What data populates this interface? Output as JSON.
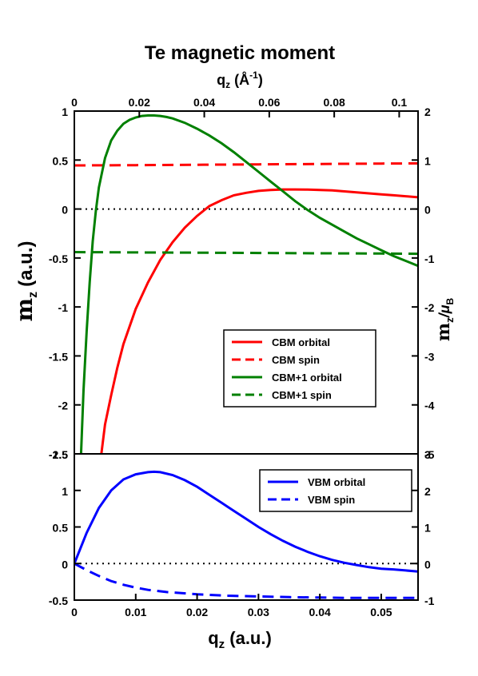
{
  "chart_data": {
    "type": "line",
    "title": "Te magnetic moment",
    "top_xlabel": {
      "main": "q",
      "sub": "z",
      "rest": " (Å",
      "sup": "-1",
      "close": ")"
    },
    "xlabel": {
      "main": "q",
      "sub": "z",
      "rest": " (a.u.)"
    },
    "ylabel_left": "m",
    "ylabel_left_sub": "z",
    "ylabel_left_unit": "(a.u.)",
    "ylabel_right": "m",
    "ylabel_right_sub": "z",
    "ylabel_right_unit": "/μ",
    "ylabel_right_unit_sub": "B",
    "xlim": [
      0,
      0.056
    ],
    "top_xlim": [
      0,
      0.1058
    ],
    "top_xticks": [
      "0",
      "0.02",
      "0.04",
      "0.06",
      "0.08",
      "0.1"
    ],
    "top_xtick_values": [
      0,
      0.02,
      0.04,
      0.06,
      0.08,
      0.1
    ],
    "bottom_xticks": [
      "0",
      "0.01",
      "0.02",
      "0.03",
      "0.04",
      "0.05"
    ],
    "bottom_xtick_values": [
      0,
      0.01,
      0.02,
      0.03,
      0.04,
      0.05
    ],
    "grid": false,
    "panels": [
      {
        "id": "upper",
        "ylim": [
          -2.5,
          1
        ],
        "yticks_left": [
          "1",
          "0.5",
          "0",
          "-0.5",
          "-1",
          "-1.5",
          "-2",
          "-2.5"
        ],
        "ytick_values": [
          1,
          0.5,
          0,
          -0.5,
          -1,
          -1.5,
          -2,
          -2.5
        ],
        "yticks_right": [
          "2",
          "1",
          "0",
          "-1",
          "-2",
          "-3",
          "-4",
          "-5"
        ],
        "legend_position": "lower-right",
        "series": [
          {
            "name": "CBM orbital",
            "color": "#ff0000",
            "dash": "solid",
            "x": [
              0.0044,
              0.005,
              0.006,
              0.007,
              0.008,
              0.01,
              0.012,
              0.014,
              0.016,
              0.018,
              0.02,
              0.022,
              0.024,
              0.026,
              0.028,
              0.03,
              0.032,
              0.034,
              0.036,
              0.038,
              0.04,
              0.042,
              0.044,
              0.046,
              0.048,
              0.05,
              0.052,
              0.054,
              0.056
            ],
            "y": [
              -2.5,
              -2.2,
              -1.9,
              -1.62,
              -1.38,
              -1.02,
              -0.75,
              -0.52,
              -0.34,
              -0.19,
              -0.07,
              0.03,
              0.09,
              0.14,
              0.165,
              0.185,
              0.195,
              0.2,
              0.2,
              0.198,
              0.195,
              0.19,
              0.18,
              0.17,
              0.16,
              0.15,
              0.14,
              0.13,
              0.12
            ]
          },
          {
            "name": "CBM spin",
            "color": "#ff0000",
            "dash": "dashed",
            "x": [
              0,
              0.01,
              0.02,
              0.03,
              0.04,
              0.05,
              0.056
            ],
            "y": [
              0.445,
              0.448,
              0.452,
              0.456,
              0.46,
              0.464,
              0.466
            ]
          },
          {
            "name": "CBM+1 orbital",
            "color": "#008000",
            "dash": "solid",
            "x": [
              0.0011,
              0.0015,
              0.002,
              0.0025,
              0.003,
              0.0035,
              0.004,
              0.005,
              0.006,
              0.007,
              0.008,
              0.009,
              0.01,
              0.011,
              0.012,
              0.013,
              0.014,
              0.015,
              0.016,
              0.018,
              0.02,
              0.022,
              0.024,
              0.026,
              0.028,
              0.03,
              0.032,
              0.034,
              0.036,
              0.038,
              0.04,
              0.042,
              0.044,
              0.046,
              0.048,
              0.05,
              0.052,
              0.054,
              0.056
            ],
            "y": [
              -2.5,
              -1.85,
              -1.25,
              -0.75,
              -0.33,
              -0.02,
              0.22,
              0.52,
              0.7,
              0.8,
              0.87,
              0.91,
              0.935,
              0.95,
              0.955,
              0.955,
              0.95,
              0.94,
              0.925,
              0.88,
              0.82,
              0.75,
              0.67,
              0.58,
              0.48,
              0.38,
              0.28,
              0.18,
              0.08,
              -0.01,
              -0.09,
              -0.16,
              -0.23,
              -0.3,
              -0.36,
              -0.42,
              -0.48,
              -0.53,
              -0.58
            ]
          },
          {
            "name": "CBM+1 spin",
            "color": "#008000",
            "dash": "dashed",
            "x": [
              0,
              0.01,
              0.02,
              0.03,
              0.04,
              0.05,
              0.056
            ],
            "y": [
              -0.44,
              -0.443,
              -0.446,
              -0.449,
              -0.452,
              -0.455,
              -0.457
            ]
          }
        ]
      },
      {
        "id": "lower",
        "ylim": [
          -0.5,
          1.5
        ],
        "yticks_left": [
          "1",
          "0.5",
          "0",
          "-0.5"
        ],
        "ytick_values": [
          1,
          0.5,
          0,
          -0.5
        ],
        "top_label_left": "1.5",
        "top_label_right": "3",
        "yticks_right": [
          "2",
          "1",
          "0",
          "-1"
        ],
        "legend_position": "top-right",
        "series": [
          {
            "name": "VBM orbital",
            "color": "#0000ff",
            "dash": "solid",
            "x": [
              0,
              0.002,
              0.004,
              0.006,
              0.008,
              0.01,
              0.012,
              0.013,
              0.014,
              0.016,
              0.018,
              0.02,
              0.022,
              0.024,
              0.026,
              0.028,
              0.03,
              0.032,
              0.034,
              0.036,
              0.038,
              0.04,
              0.042,
              0.044,
              0.046,
              0.048,
              0.05,
              0.052,
              0.054,
              0.056
            ],
            "y": [
              0,
              0.42,
              0.76,
              1.0,
              1.15,
              1.22,
              1.25,
              1.255,
              1.25,
              1.21,
              1.14,
              1.05,
              0.94,
              0.83,
              0.72,
              0.61,
              0.5,
              0.4,
              0.31,
              0.23,
              0.16,
              0.1,
              0.05,
              0.01,
              -0.02,
              -0.05,
              -0.07,
              -0.08,
              -0.095,
              -0.11
            ]
          },
          {
            "name": "VBM spin",
            "color": "#0000ff",
            "dash": "dashed",
            "x": [
              0,
              0.002,
              0.004,
              0.006,
              0.008,
              0.01,
              0.012,
              0.015,
              0.02,
              0.025,
              0.03,
              0.035,
              0.04,
              0.045,
              0.05,
              0.056
            ],
            "y": [
              0,
              -0.09,
              -0.17,
              -0.24,
              -0.29,
              -0.33,
              -0.36,
              -0.39,
              -0.42,
              -0.44,
              -0.45,
              -0.46,
              -0.465,
              -0.47,
              -0.47,
              -0.47
            ]
          }
        ]
      }
    ]
  }
}
